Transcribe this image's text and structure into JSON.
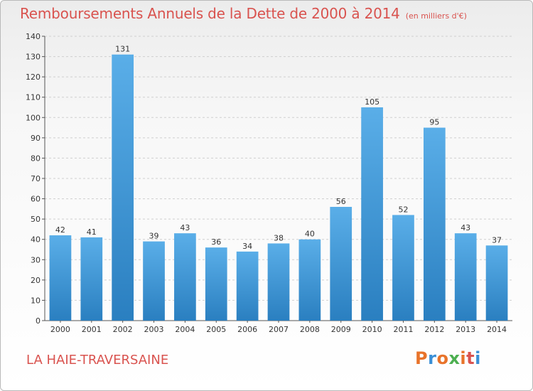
{
  "header": {
    "title": "Remboursements Annuels de la Dette de 2000 à 2014",
    "unit": "(en milliers d'€)"
  },
  "footer": {
    "city": "LA HAIE-TRAVERSAINE",
    "logo": "Proxiti"
  },
  "colors": {
    "title": "#d9534f",
    "bar_top": "#5aaee8",
    "bar_bottom": "#2a7fc0",
    "logo_letters": [
      "#e8732a",
      "#3a8fd6",
      "#e8732a",
      "#4caf50",
      "#e8732a",
      "#d9534f",
      "#3a8fd6"
    ]
  },
  "chart_data": {
    "type": "bar",
    "title": "Remboursements Annuels de la Dette de 2000 à 2014",
    "categories": [
      "2000",
      "2001",
      "2002",
      "2003",
      "2004",
      "2005",
      "2006",
      "2007",
      "2008",
      "2009",
      "2010",
      "2011",
      "2012",
      "2013",
      "2014"
    ],
    "values": [
      42,
      41,
      131,
      39,
      43,
      36,
      34,
      38,
      40,
      56,
      105,
      52,
      95,
      43,
      37
    ],
    "ylim": [
      0,
      140
    ],
    "yticks": [
      0,
      10,
      20,
      30,
      40,
      50,
      60,
      70,
      80,
      90,
      100,
      110,
      120,
      130,
      140
    ],
    "grid": true,
    "xlabel": "",
    "ylabel": ""
  }
}
